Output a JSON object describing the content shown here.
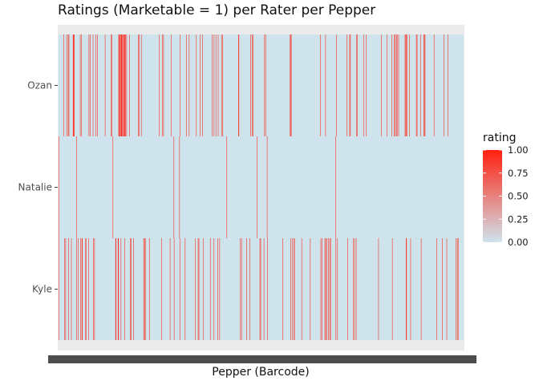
{
  "chart_data": {
    "type": "heatmap",
    "title": "Ratings (Marketable = 1) per Rater per Pepper",
    "xlabel": "Pepper (Barcode)",
    "ylabel": "",
    "raters": [
      "Ozan",
      "Natalie",
      "Kyle"
    ],
    "color_scale": {
      "name": "rating",
      "low": 0,
      "high": 1,
      "low_color": "#cfe3ec",
      "high_color": "#ff2010",
      "ticks": [
        "1.00",
        "0.75",
        "0.50",
        "0.25",
        "0.00"
      ]
    },
    "series": [
      {
        "name": "Ozan",
        "values": "0000000000000100000001000101000000000011110000000000000001001000000000000000000010010000000100000010000100000000000000000001000000000000000101000000000000000001110101110101011111001000000010000000000000000000000101000001000000000000000000000000000000000000000000000001000000010010000000000000000000100000000000000000000000100000000000000001000000100000000000000000010000000001000001000000000000000000000000010000100001000001000000001001000000000000000000000000000000000000000001100000000000000000000000000000010001001000000000000000000000000000001001000000000000000000000000000000000000000000000000000000000000000011010000000000000000000000000000000000000000000000000000000000000000000000000000100000000000001000000000000000000000000000010000000000000000000000000001000000101000000000000000101000000000000000010000001000000000000000000000000000000000000000100000000000000100000000000010000010010010100010000000000000000101101000000100000000000000000101000000001000000001101000000000000000000000001000000000000000000000000010000000000100000000000000000000000000000000000000000"
      },
      {
        "name": "Natalie",
        "values": "1000000000000000000000000000000000000000000010000000000000000000000000000000000000000000000000000000000000000000000000000000000000000010000000000000000000000000000000000000000000000000000000000000000000000000000000000000000000000000000000000000000000000000000000000000000000000000000001000000000000010000000000000000000000000000000000000000000000000000000000000000000000000000000000000000000000000000000000000000000010000000000000000000000000000000000000000000000000000000000000000000000000010000000000000000000000001000000000000000000000000000000000000000000000000000000000000000000000000000000000000000000000000000000000000000000000000000000000000000000000000000000000000000000000000010000000000000000000000000000000000000000000000000000000000000000000000000000000000000000000000000000000000000000000000000000000000000000000000000000000000000000000000000000000000000000000000000000000000000000000000000000000000000000000000000000000000000000000000000000000000000000000000000000000000000000000000000000"
      },
      {
        "name": "Kyle",
        "values": "1000000000000010010000001000000100000000000010001000001001100000001100000100000000000100100000000000000000000000000000000000000000000000000011000011000001000000001000000000000010100000100000000000000000000000010101000000000100000000000000000000000000000100000000000000000000100000000010000000000000100000000000010000000000000000000000001000000101000000000010000000000000000100000000100000000100001000000000000000000000000000000000000000000000000001001000000000001000000010000000000000000000000001010000000100000000100000000000000000000000000000000000010000000000000000000100010001100000000000000000100000000000000000000100000000000000000000000001001000000101001000100101000000000000100010000000000000000000000001000000000000010010001000000000000000000000000000000000000000000000000000000100000000000000000000000000000000010000000000000000000000000000000001100000000010000000000000000000000000100000000000000000000000000000000000001000000000000010000000000100000000000000000000001001010000000000000"
      }
    ]
  }
}
